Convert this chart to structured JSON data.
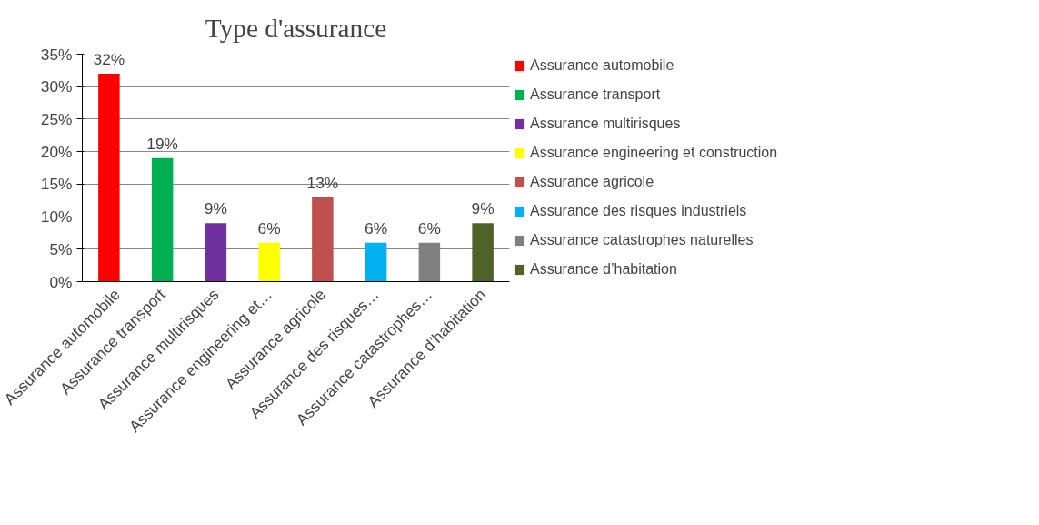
{
  "chart_data": {
    "type": "bar",
    "title": "Type d'assurance",
    "stacked": true,
    "grid": "y",
    "legend": "right",
    "categories": [
      "Assurance automobile",
      "Assurance transport",
      "Assurance multirisques",
      "Assurance engineering et…",
      "Assurance agricole",
      "Assurance des risques…",
      "Assurance catastrophes…",
      "Assurance d’habitation"
    ],
    "ylim": [
      0,
      35
    ],
    "yticks": [
      {
        "value": 0,
        "label": "0%"
      },
      {
        "value": 5,
        "label": "5%"
      },
      {
        "value": 10,
        "label": "10%"
      },
      {
        "value": 15,
        "label": "15%"
      },
      {
        "value": 20,
        "label": "20%"
      },
      {
        "value": 25,
        "label": "25%"
      },
      {
        "value": 30,
        "label": "30%"
      },
      {
        "value": 35,
        "label": "35%"
      }
    ],
    "series": [
      {
        "name": "Assurance automobile",
        "color": "#ff0000",
        "values": [
          32,
          null,
          null,
          null,
          null,
          null,
          null,
          null
        ],
        "value_labels": [
          "32%",
          null,
          null,
          null,
          null,
          null,
          null,
          null
        ]
      },
      {
        "name": "Assurance transport",
        "color": "#00b050",
        "values": [
          null,
          19,
          null,
          null,
          null,
          null,
          null,
          null
        ],
        "value_labels": [
          null,
          "19%",
          null,
          null,
          null,
          null,
          null,
          null
        ]
      },
      {
        "name": "Assurance multirisques",
        "color": "#7030a0",
        "values": [
          null,
          null,
          9,
          null,
          null,
          null,
          null,
          null
        ],
        "value_labels": [
          null,
          null,
          "9%",
          null,
          null,
          null,
          null,
          null
        ]
      },
      {
        "name": "Assurance engineering et construction",
        "color": "#ffff00",
        "values": [
          null,
          null,
          null,
          6,
          null,
          null,
          null,
          null
        ],
        "value_labels": [
          null,
          null,
          null,
          "6%",
          null,
          null,
          null,
          null
        ]
      },
      {
        "name": "Assurance agricole",
        "color": "#c0504d",
        "values": [
          null,
          null,
          null,
          null,
          13,
          null,
          null,
          null
        ],
        "value_labels": [
          null,
          null,
          null,
          null,
          "13%",
          null,
          null,
          null
        ]
      },
      {
        "name": "Assurance des risques industriels",
        "color": "#00b0f0",
        "values": [
          null,
          null,
          null,
          null,
          null,
          6,
          null,
          null
        ],
        "value_labels": [
          null,
          null,
          null,
          null,
          null,
          "6%",
          null,
          null
        ]
      },
      {
        "name": "Assurance catastrophes naturelles",
        "color": "#808080",
        "values": [
          null,
          null,
          null,
          null,
          null,
          null,
          6,
          null
        ],
        "value_labels": [
          null,
          null,
          null,
          null,
          null,
          null,
          "6%",
          null
        ]
      },
      {
        "name": "Assurance d’habitation",
        "color": "#4f6228",
        "values": [
          null,
          null,
          null,
          null,
          null,
          null,
          null,
          9
        ],
        "value_labels": [
          null,
          null,
          null,
          null,
          null,
          null,
          null,
          "9%"
        ]
      }
    ]
  }
}
